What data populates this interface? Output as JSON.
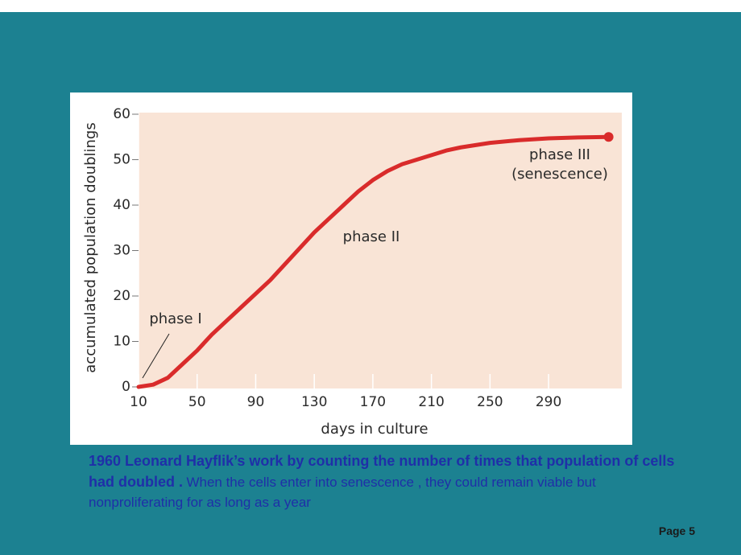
{
  "chart_data": {
    "type": "line",
    "xlabel": "days in culture",
    "ylabel": "accumulated population doublings",
    "x": [
      10,
      20,
      30,
      40,
      50,
      60,
      70,
      80,
      90,
      100,
      110,
      120,
      130,
      140,
      150,
      160,
      170,
      180,
      190,
      200,
      210,
      220,
      230,
      250,
      270,
      290,
      310,
      331
    ],
    "series": [
      {
        "name": "population doublings",
        "color": "#d92b2b",
        "values": [
          0,
          0.5,
          2,
          5,
          8,
          11.5,
          14.5,
          17.5,
          20.5,
          23.5,
          27,
          30.5,
          34,
          37,
          40,
          43,
          45.5,
          47.5,
          49,
          50,
          51,
          52,
          52.7,
          53.7,
          54.3,
          54.7,
          54.9,
          55
        ]
      }
    ],
    "xlim": [
      10,
      340
    ],
    "ylim": [
      0,
      60
    ],
    "xticks": [
      10,
      50,
      90,
      130,
      170,
      210,
      250,
      290
    ],
    "yticks": [
      0,
      10,
      20,
      30,
      40,
      50,
      60
    ],
    "annotations": [
      "phase I",
      "phase II",
      "phase III",
      "(senescence)"
    ]
  },
  "caption": {
    "bold": "1960 Leonard Hayflik’s work by counting the number of times that population of cells had doubled .",
    "normal": "When the cells enter into senescence , they could remain viable but nonproliferating for as long as a year"
  },
  "page_label": "Page 5"
}
